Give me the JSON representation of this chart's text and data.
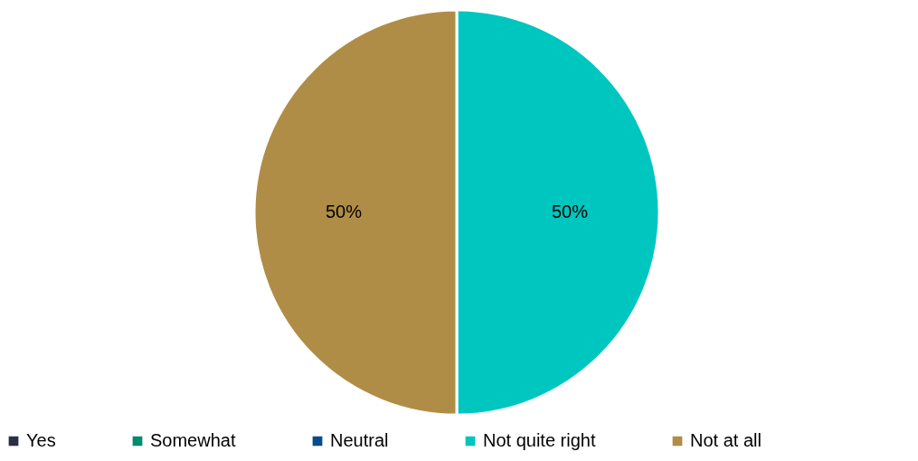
{
  "chart_data": {
    "type": "pie",
    "categories": [
      "Yes",
      "Somewhat",
      "Neutral",
      "Not quite right",
      "Not at all"
    ],
    "values": [
      0,
      0,
      0,
      50,
      50
    ],
    "colors": [
      "#2b2f45",
      "#008a6e",
      "#0a4b8c",
      "#00c6c0",
      "#b08d46"
    ],
    "value_labels": [
      null,
      null,
      null,
      "50%",
      "50%"
    ],
    "legend": "bottom"
  }
}
